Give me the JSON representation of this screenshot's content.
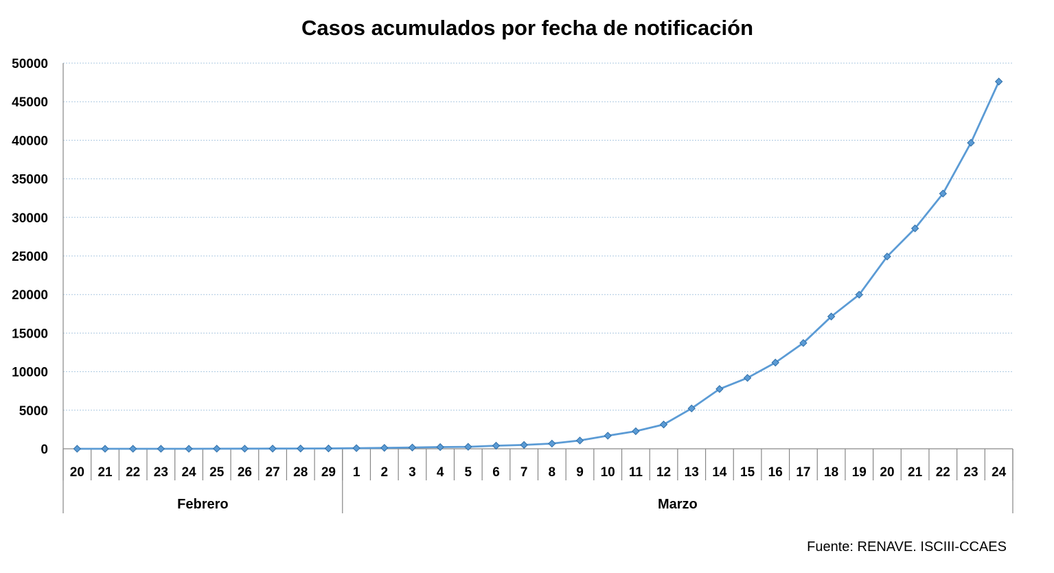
{
  "chart_data": {
    "type": "line",
    "title": "Casos acumulados por fecha de notificación",
    "xlabel": "",
    "ylabel": "",
    "ylim": [
      0,
      50000
    ],
    "yticks": [
      0,
      5000,
      10000,
      15000,
      20000,
      25000,
      30000,
      35000,
      40000,
      45000,
      50000
    ],
    "grid": true,
    "categories": [
      "20",
      "21",
      "22",
      "23",
      "24",
      "25",
      "26",
      "27",
      "28",
      "29",
      "1",
      "2",
      "3",
      "4",
      "5",
      "6",
      "7",
      "8",
      "9",
      "10",
      "11",
      "12",
      "13",
      "14",
      "15",
      "16",
      "17",
      "18",
      "19",
      "20",
      "21",
      "22",
      "23",
      "24"
    ],
    "groups": [
      {
        "label": "Febrero",
        "count": 10
      },
      {
        "label": "Marzo",
        "count": 24
      }
    ],
    "series": [
      {
        "color": "#5b9bd5",
        "values": [
          2,
          2,
          2,
          2,
          2,
          13,
          15,
          23,
          32,
          45,
          84,
          120,
          165,
          222,
          259,
          400,
          500,
          673,
          1073,
          1695,
          2277,
          3146,
          5232,
          7753,
          9191,
          11178,
          13716,
          17147,
          19980,
          24926,
          28572,
          33089,
          39673,
          47610
        ]
      }
    ]
  },
  "source_note": "Fuente: RENAVE. ISCIII-CCAES"
}
